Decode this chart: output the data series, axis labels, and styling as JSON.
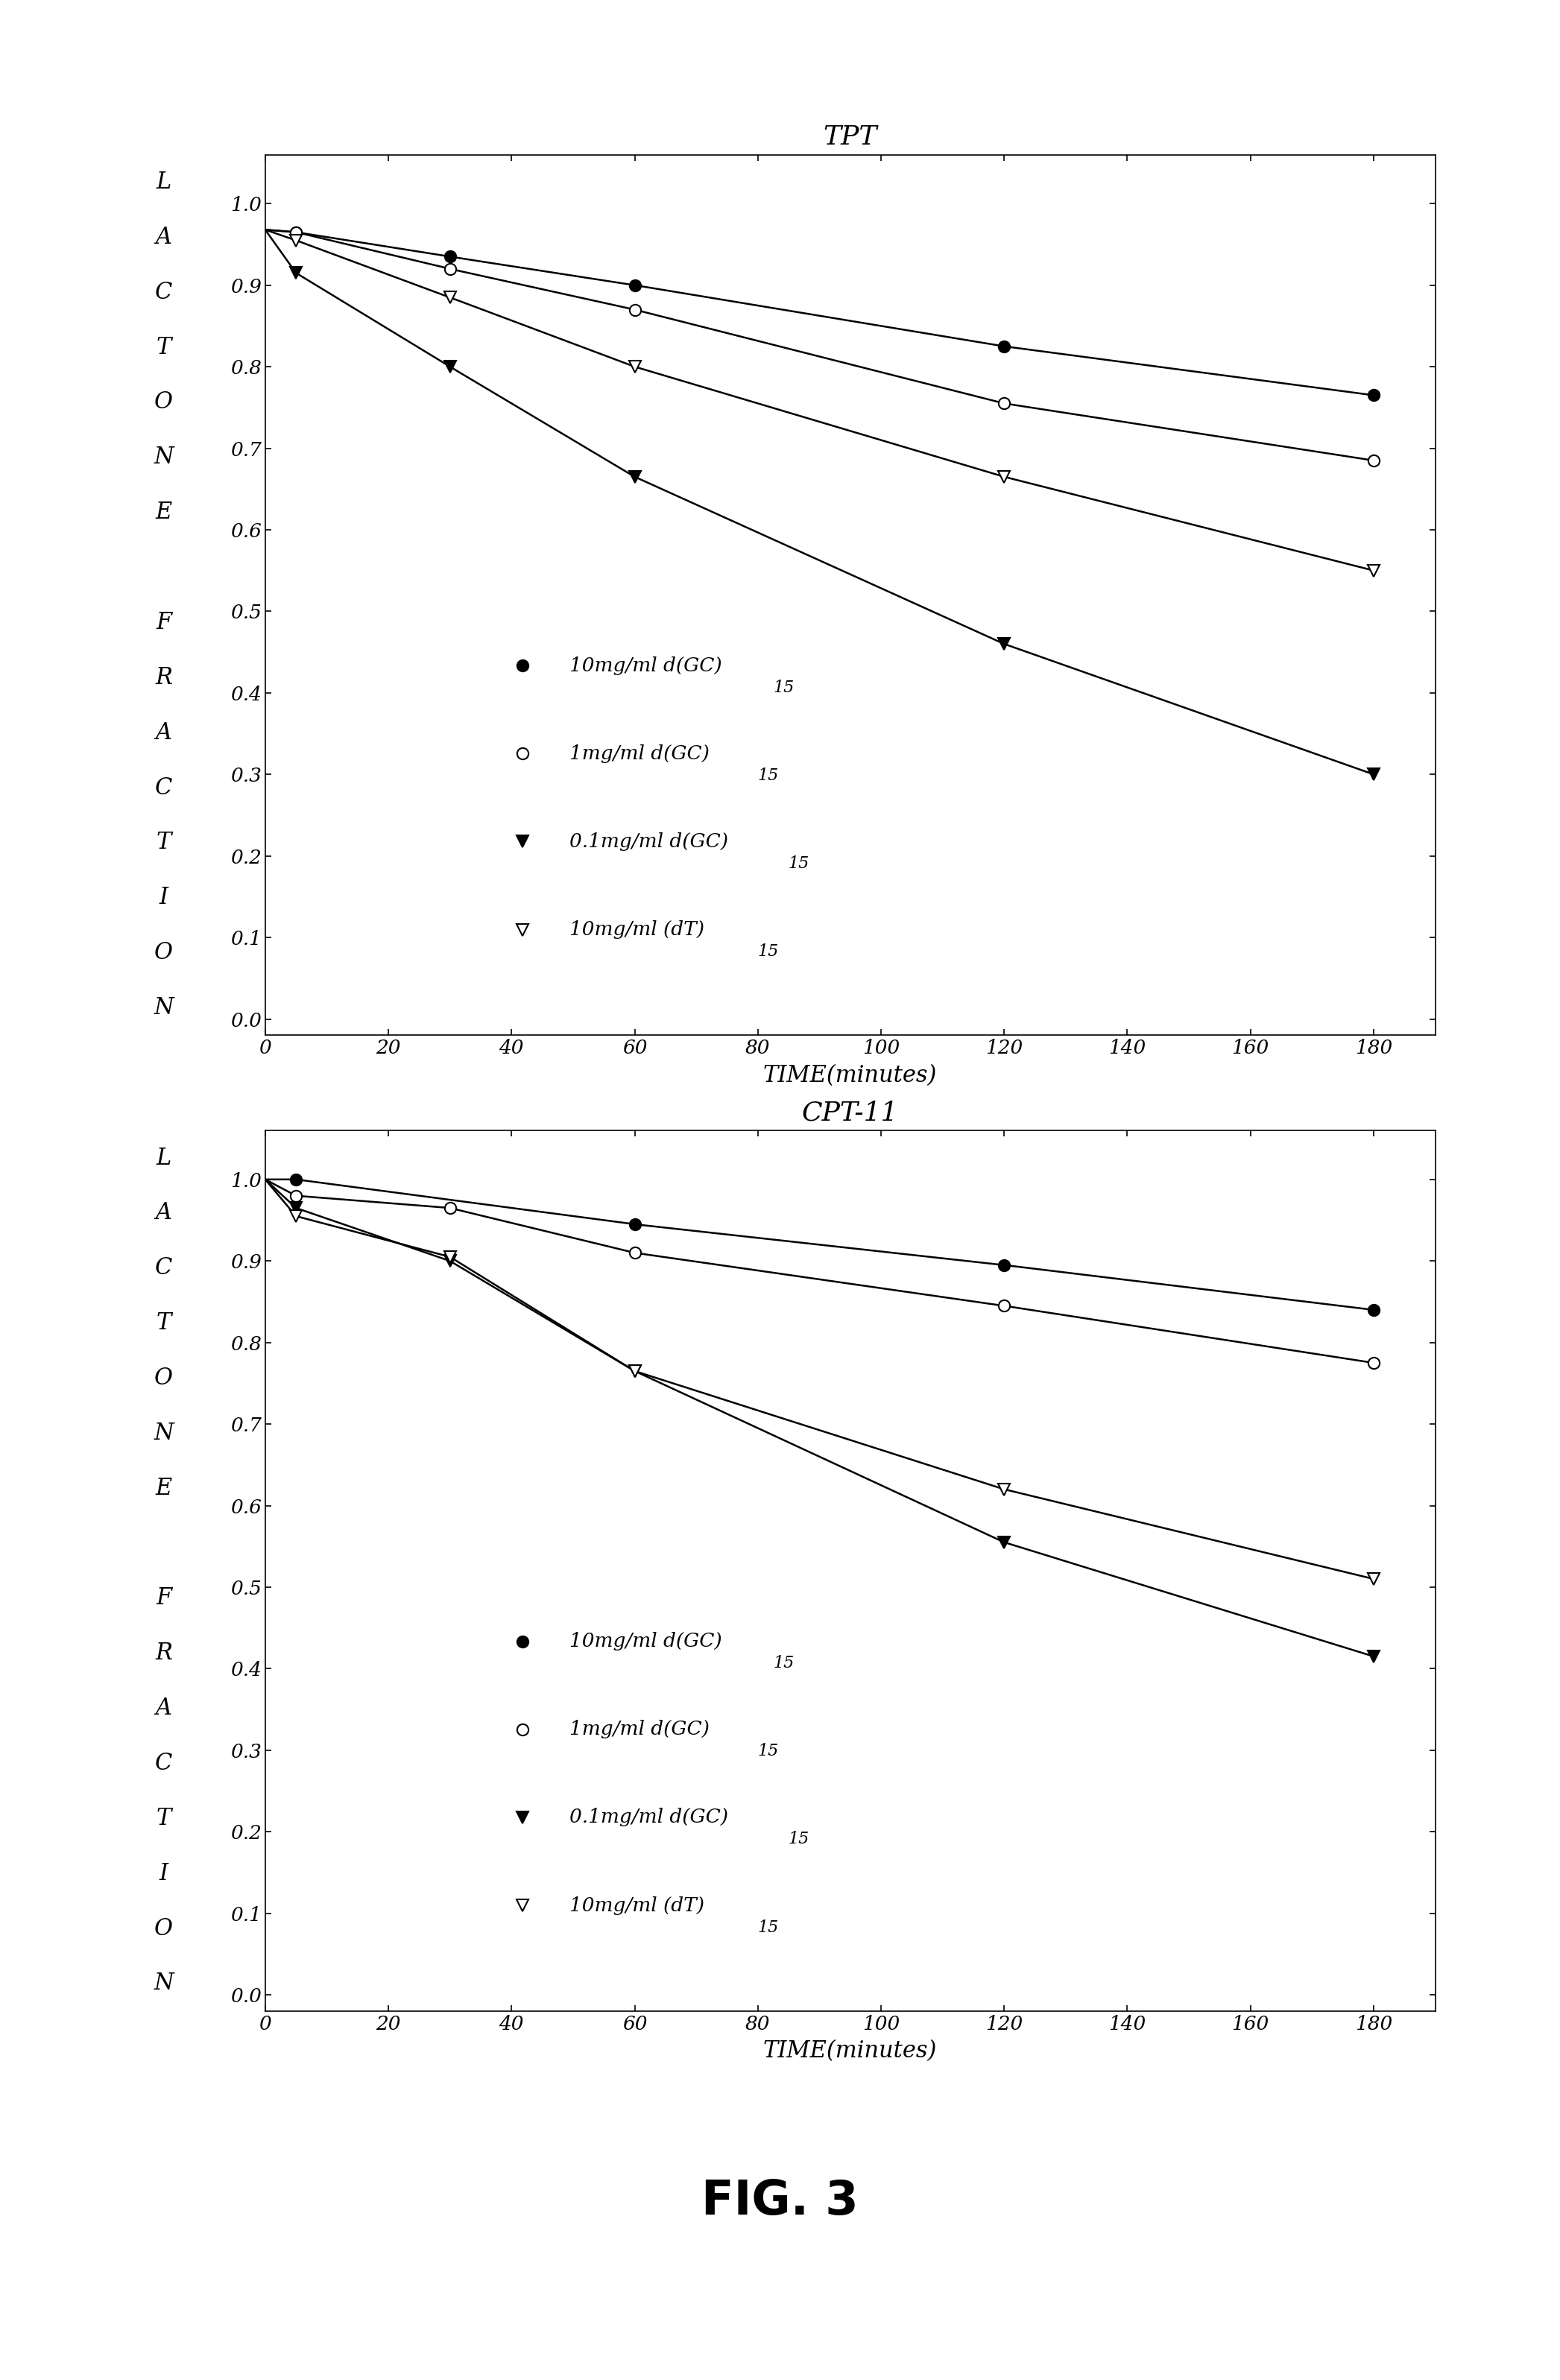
{
  "tpt": {
    "title": "TPT",
    "series": [
      {
        "label": "10mg/ml d(GC)",
        "label_sub": "15",
        "marker": "filled_circle",
        "x": [
          5,
          30,
          60,
          120,
          180
        ],
        "y": [
          0.965,
          0.935,
          0.9,
          0.825,
          0.765
        ],
        "curve_x": [
          0,
          5,
          30,
          60,
          120,
          180
        ],
        "curve_y": [
          0.968,
          0.965,
          0.935,
          0.9,
          0.825,
          0.765
        ]
      },
      {
        "label": "1mg/ml d(GC)",
        "label_sub": "15",
        "marker": "open_circle",
        "x": [
          5,
          30,
          60,
          120,
          180
        ],
        "y": [
          0.965,
          0.92,
          0.87,
          0.755,
          0.685
        ],
        "curve_x": [
          0,
          5,
          30,
          60,
          120,
          180
        ],
        "curve_y": [
          0.968,
          0.965,
          0.92,
          0.87,
          0.755,
          0.685
        ]
      },
      {
        "label": "0.1mg/ml d(GC)",
        "label_sub": " 15",
        "marker": "filled_triangle_down",
        "x": [
          5,
          30,
          60,
          120,
          180
        ],
        "y": [
          0.915,
          0.8,
          0.665,
          0.46,
          0.3
        ],
        "curve_x": [
          0,
          5,
          30,
          60,
          120,
          180
        ],
        "curve_y": [
          0.968,
          0.915,
          0.8,
          0.665,
          0.46,
          0.3
        ]
      },
      {
        "label": "10mg/ml (dT)",
        "label_sub": "15",
        "marker": "open_triangle_down",
        "x": [
          5,
          30,
          60,
          120,
          180
        ],
        "y": [
          0.955,
          0.885,
          0.8,
          0.665,
          0.55
        ],
        "curve_x": [
          0,
          5,
          30,
          60,
          120,
          180
        ],
        "curve_y": [
          0.968,
          0.955,
          0.885,
          0.8,
          0.665,
          0.55
        ]
      }
    ]
  },
  "cpt11": {
    "title": "CPT-11",
    "series": [
      {
        "label": "10mg/ml d(GC)",
        "label_sub": "15",
        "marker": "filled_circle",
        "x": [
          5,
          60,
          120,
          180
        ],
        "y": [
          1.0,
          0.945,
          0.895,
          0.84
        ],
        "curve_x": [
          0,
          5,
          60,
          120,
          180
        ],
        "curve_y": [
          1.0,
          1.0,
          0.945,
          0.895,
          0.84
        ]
      },
      {
        "label": "1mg/ml d(GC)",
        "label_sub": "15",
        "marker": "open_circle",
        "x": [
          5,
          30,
          60,
          120,
          180
        ],
        "y": [
          0.98,
          0.965,
          0.91,
          0.845,
          0.775
        ],
        "curve_x": [
          0,
          5,
          30,
          60,
          120,
          180
        ],
        "curve_y": [
          1.0,
          0.98,
          0.965,
          0.91,
          0.845,
          0.775
        ]
      },
      {
        "label": "0.1mg/ml d(GC)",
        "label_sub": " 15",
        "marker": "filled_triangle_down",
        "x": [
          5,
          30,
          60,
          120,
          180
        ],
        "y": [
          0.965,
          0.9,
          0.765,
          0.555,
          0.415
        ],
        "curve_x": [
          0,
          5,
          30,
          60,
          120,
          180
        ],
        "curve_y": [
          1.0,
          0.965,
          0.9,
          0.765,
          0.555,
          0.415
        ]
      },
      {
        "label": "10mg/ml (dT)",
        "label_sub": "15",
        "marker": "open_triangle_down",
        "x": [
          5,
          30,
          60,
          120,
          180
        ],
        "y": [
          0.955,
          0.905,
          0.765,
          0.62,
          0.51
        ],
        "curve_x": [
          0,
          5,
          30,
          60,
          120,
          180
        ],
        "curve_y": [
          1.0,
          0.955,
          0.905,
          0.765,
          0.62,
          0.51
        ]
      }
    ]
  },
  "xlabel": "TIME(minutes)",
  "fig_label": "FIG. 3",
  "xlim": [
    0,
    190
  ],
  "ylim": [
    -0.02,
    1.06
  ],
  "xticks": [
    0,
    20,
    40,
    60,
    80,
    100,
    120,
    140,
    160,
    180
  ],
  "yticks": [
    0.0,
    0.1,
    0.2,
    0.3,
    0.4,
    0.5,
    0.6,
    0.7,
    0.8,
    0.9,
    1.0
  ],
  "ytick_labels": [
    "0.0",
    "0.1",
    "0.2",
    "0.3",
    "0.4",
    "0.5",
    "0.6",
    "0.7",
    "0.8",
    "0.9",
    "1.0"
  ],
  "ylabel_letters": [
    "L",
    "A",
    "C",
    "T",
    "O",
    "N",
    "E",
    "",
    "F",
    "R",
    "A",
    "C",
    "T",
    "I",
    "O",
    "N"
  ]
}
